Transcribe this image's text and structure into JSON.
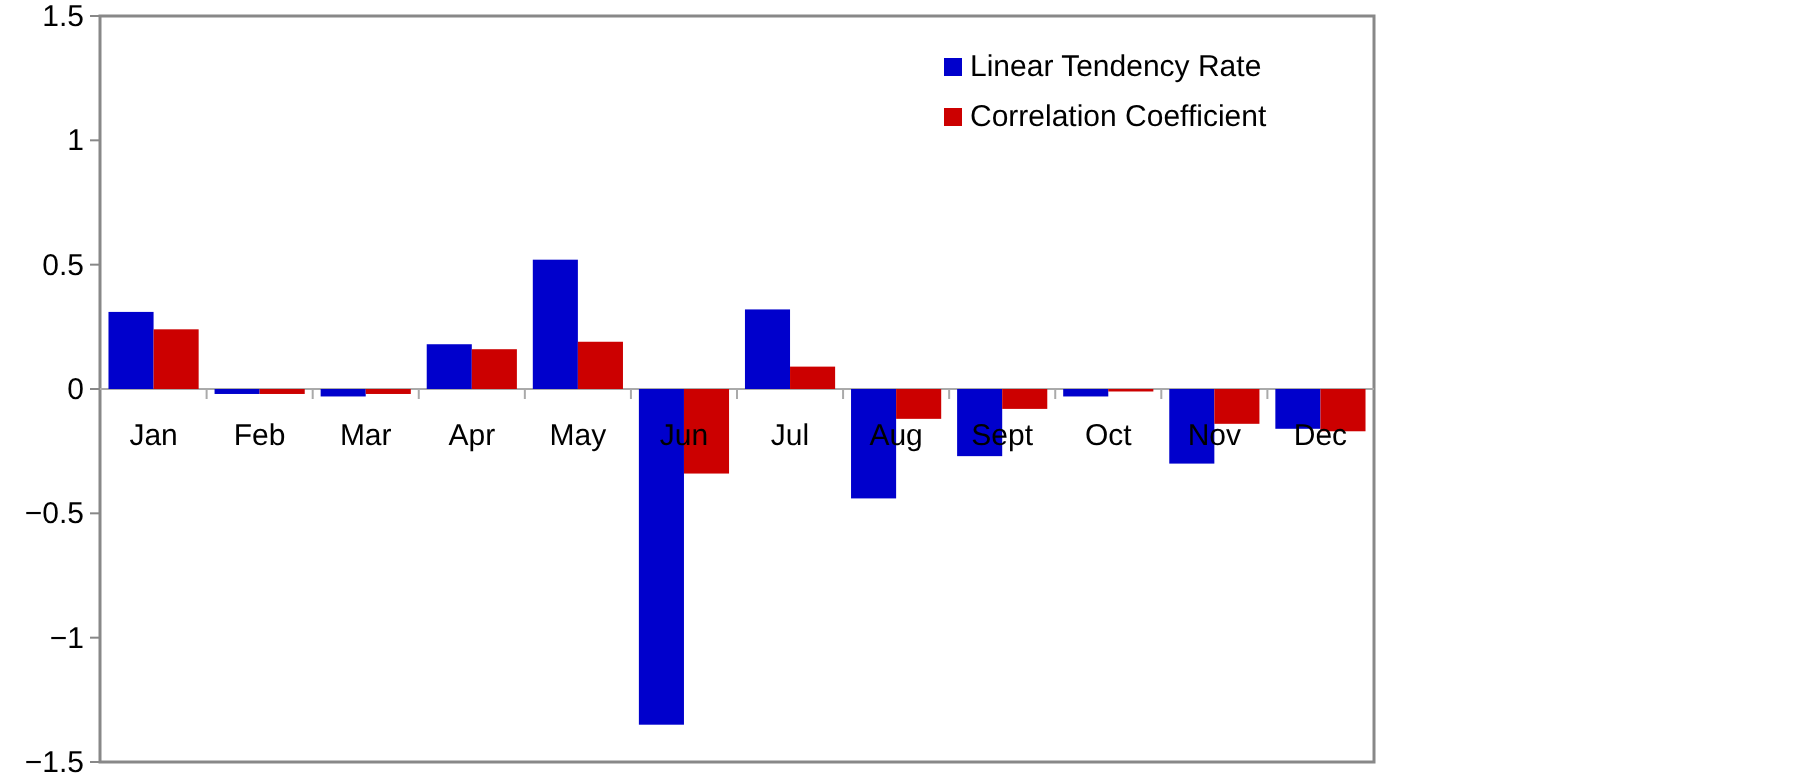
{
  "chart_data": {
    "type": "bar",
    "categories": [
      "Jan",
      "Feb",
      "Mar",
      "Apr",
      "May",
      "Jun",
      "Jul",
      "Aug",
      "Sept",
      "Oct",
      "Nov",
      "Dec"
    ],
    "series": [
      {
        "name": "Linear Tendency Rate",
        "color": "#0000cc",
        "values": [
          0.31,
          -0.02,
          -0.03,
          0.18,
          0.52,
          -1.35,
          0.32,
          -0.44,
          -0.27,
          -0.03,
          -0.3,
          -0.16
        ]
      },
      {
        "name": "Correlation Coefficient",
        "color": "#cc0000",
        "values": [
          0.24,
          -0.02,
          -0.02,
          0.16,
          0.19,
          -0.34,
          0.09,
          -0.12,
          -0.08,
          -0.01,
          -0.14,
          -0.17
        ]
      }
    ],
    "ylim": [
      -1.5,
      1.5
    ],
    "yticks": [
      -1.5,
      -1,
      -0.5,
      0,
      0.5,
      1,
      1.5
    ],
    "grid": false,
    "legend": "top right"
  }
}
